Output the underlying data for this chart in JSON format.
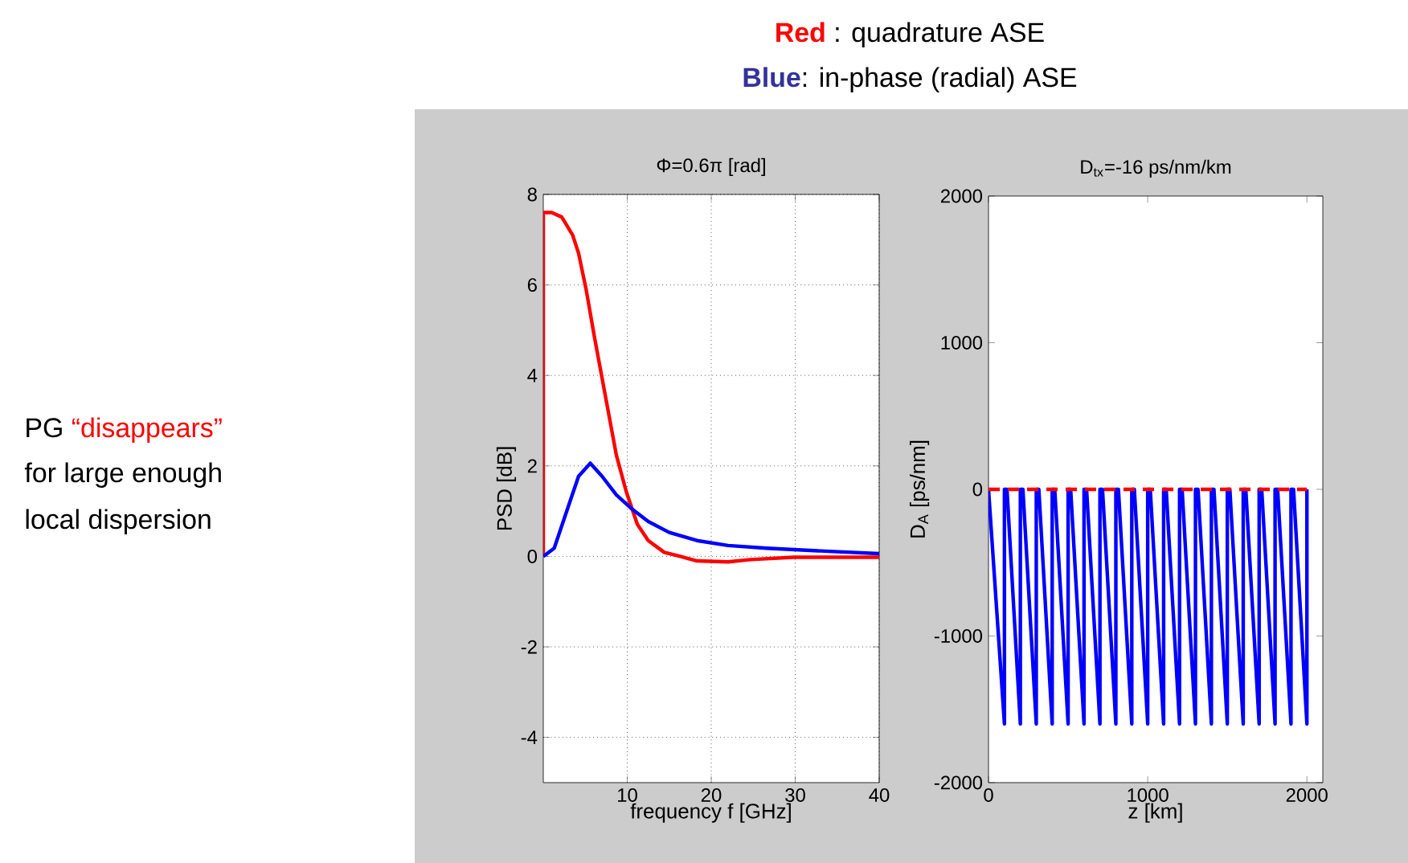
{
  "chart_data": [
    {
      "type": "line",
      "title": "Φ=0.6π [rad]",
      "xlabel": "frequency f [GHz]",
      "ylabel": "PSD [dB]",
      "xlim": [
        0,
        40
      ],
      "ylim": [
        -5,
        8
      ],
      "xticks": [
        10,
        20,
        30,
        40
      ],
      "yticks": [
        -4,
        -2,
        0,
        2,
        4,
        6,
        8
      ],
      "grid": true,
      "marker": "none",
      "annotations": [
        "Red",
        " : quadrature ASE",
        "Blue",
        ": in-phase (radial) ASE",
        "PG ",
        "“disappears”",
        "for large enough",
        "local dispersion"
      ],
      "series": [
        {
          "color": "#ff0000",
          "x": [
            0,
            0,
            1,
            2.2,
            3.5,
            4.2,
            5.1,
            6.1,
            7.4,
            8.7,
            9.9,
            11.2,
            12.5,
            14.4,
            16.3,
            18.3,
            22,
            24.7,
            29.8,
            40
          ],
          "values": [
            0,
            7.6,
            7.6,
            7.5,
            7.1,
            6.7,
            5.9,
            4.84,
            3.54,
            2.24,
            1.42,
            0.71,
            0.35,
            0.09,
            0,
            -0.1,
            -0.12,
            -0.07,
            -0.02,
            -0.02
          ]
        },
        {
          "color": "#0000ff",
          "x": [
            0,
            1.3,
            2.9,
            4.2,
            5.6,
            7,
            8.7,
            10.6,
            12.5,
            15,
            18.3,
            22,
            26.6,
            33,
            40
          ],
          "values": [
            0,
            0.18,
            1.06,
            1.77,
            2.06,
            1.77,
            1.36,
            1.04,
            0.77,
            0.53,
            0.35,
            0.24,
            0.18,
            0.12,
            0.06
          ]
        }
      ]
    },
    {
      "type": "line",
      "title": "D$_{tx}$=-16 ps/nm/km",
      "xlabel": "z [km]",
      "ylabel": "D$_{A}$ [ps/nm]",
      "xlim": [
        0,
        2100
      ],
      "ylim": [
        -2000,
        2000
      ],
      "xticks": [
        0,
        1000,
        2000
      ],
      "yticks": [
        -2000,
        -1000,
        0,
        1000,
        2000
      ],
      "grid": false,
      "marker": "none",
      "series": [
        {
          "color": "#0000ff",
          "x": [
            0,
            100,
            100,
            116,
            200,
            200,
            216,
            300,
            300,
            316,
            400,
            400,
            416,
            500,
            500,
            516,
            600,
            600,
            616,
            700,
            700,
            716,
            800,
            800,
            816,
            900,
            900,
            916,
            1000,
            1000,
            1016,
            1100,
            1100,
            1116,
            1200,
            1200,
            1216,
            1300,
            1300,
            1316,
            1400,
            1400,
            1416,
            1500,
            1500,
            1516,
            1600,
            1600,
            1616,
            1700,
            1700,
            1716,
            1800,
            1800,
            1816,
            1900,
            1900,
            1916,
            2000,
            2000
          ],
          "values": [
            0,
            -1600,
            0,
            0,
            -1600,
            0,
            0,
            -1600,
            0,
            0,
            -1600,
            0,
            0,
            -1600,
            0,
            0,
            -1600,
            0,
            0,
            -1600,
            0,
            0,
            -1600,
            0,
            0,
            -1600,
            0,
            0,
            -1600,
            0,
            0,
            -1600,
            0,
            0,
            -1600,
            0,
            0,
            -1600,
            0,
            0,
            -1600,
            0,
            0,
            -1600,
            0,
            0,
            -1600,
            0,
            0,
            -1600,
            0,
            0,
            -1600,
            0,
            0,
            -1600,
            0,
            0,
            -1600,
            0
          ]
        },
        {
          "color": "#ff0000",
          "line_style": "dashed",
          "x": [
            0,
            2000
          ],
          "values": [
            0,
            0
          ]
        }
      ]
    }
  ]
}
